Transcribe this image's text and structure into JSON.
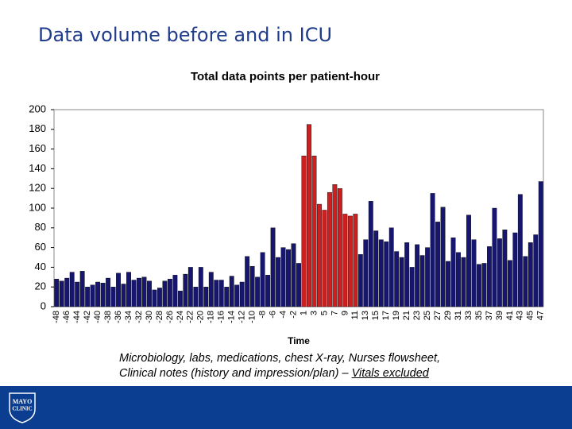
{
  "slide": {
    "title": "Data volume before and in ICU",
    "caption_line1": "Microbiology, labs, medications, chest X-ray, Nurses flowsheet,",
    "caption_line2": "Clinical notes (history and impression/plan) – ",
    "caption_underlined": "Vitals excluded",
    "logo_top": "MAYO",
    "logo_bottom": "CLINIC"
  },
  "chart_data": {
    "type": "bar",
    "title": "Total data points per patient-hour",
    "x_label": "Time",
    "categories": [
      "-48",
      null,
      "-46",
      null,
      "-44",
      null,
      "-42",
      null,
      "-40",
      null,
      "-38",
      null,
      "-36",
      null,
      "-34",
      null,
      "-32",
      null,
      "-30",
      null,
      "-28",
      null,
      "-26",
      null,
      "-24",
      null,
      "-22",
      null,
      "-20",
      null,
      "-18",
      null,
      "-16",
      null,
      "-14",
      null,
      "-12",
      null,
      "-10",
      null,
      "-8",
      null,
      "-6",
      null,
      "-4",
      null,
      "-2",
      null,
      "1",
      null,
      "3",
      null,
      "5",
      null,
      "7",
      null,
      "9",
      null,
      "11",
      null,
      "13",
      null,
      "15",
      null,
      "17",
      null,
      "19",
      null,
      "21",
      null,
      "23",
      null,
      "25",
      null,
      "27",
      null,
      "29",
      null,
      "31",
      null,
      "33",
      null,
      "35",
      null,
      "37",
      null,
      "39",
      null,
      "41",
      null,
      "43",
      null,
      "45",
      null,
      "47"
    ],
    "values": [
      28,
      26,
      29,
      35,
      25,
      36,
      20,
      22,
      25,
      24,
      29,
      20,
      34,
      23,
      35,
      27,
      29,
      30,
      26,
      17,
      19,
      26,
      28,
      32,
      16,
      33,
      40,
      20,
      40,
      20,
      35,
      27,
      27,
      20,
      31,
      22,
      25,
      51,
      41,
      30,
      55,
      32,
      80,
      50,
      60,
      58,
      64,
      44,
      153,
      185,
      153,
      104,
      98,
      116,
      124,
      120,
      94,
      92,
      94,
      53,
      68,
      107,
      77,
      68,
      66,
      80,
      56,
      50,
      65,
      40,
      63,
      52,
      60,
      115,
      86,
      101,
      46,
      70,
      55,
      50,
      93,
      68,
      43,
      44,
      61,
      100,
      69,
      78,
      47,
      75,
      114,
      51,
      65,
      73,
      127
    ],
    "colors": [
      "#16166e",
      "#16166e",
      "#16166e",
      "#16166e",
      "#16166e",
      "#16166e",
      "#16166e",
      "#16166e",
      "#16166e",
      "#16166e",
      "#16166e",
      "#16166e",
      "#16166e",
      "#16166e",
      "#16166e",
      "#16166e",
      "#16166e",
      "#16166e",
      "#16166e",
      "#16166e",
      "#16166e",
      "#16166e",
      "#16166e",
      "#16166e",
      "#16166e",
      "#16166e",
      "#16166e",
      "#16166e",
      "#16166e",
      "#16166e",
      "#16166e",
      "#16166e",
      "#16166e",
      "#16166e",
      "#16166e",
      "#16166e",
      "#16166e",
      "#16166e",
      "#16166e",
      "#16166e",
      "#16166e",
      "#16166e",
      "#16166e",
      "#16166e",
      "#16166e",
      "#16166e",
      "#16166e",
      "#16166e",
      "#cc2020",
      "#cc2020",
      "#cc2020",
      "#cc2020",
      "#cc2020",
      "#cc2020",
      "#cc2020",
      "#cc2020",
      "#cc2020",
      "#cc2020",
      "#cc2020",
      "#16166e",
      "#16166e",
      "#16166e",
      "#16166e",
      "#16166e",
      "#16166e",
      "#16166e",
      "#16166e",
      "#16166e",
      "#16166e",
      "#16166e",
      "#16166e",
      "#16166e",
      "#16166e",
      "#16166e",
      "#16166e",
      "#16166e",
      "#16166e",
      "#16166e",
      "#16166e",
      "#16166e",
      "#16166e",
      "#16166e",
      "#16166e",
      "#16166e",
      "#16166e",
      "#16166e",
      "#16166e",
      "#16166e",
      "#16166e",
      "#16166e",
      "#16166e",
      "#16166e",
      "#16166e",
      "#16166e",
      "#16166e"
    ],
    "ylim": [
      0,
      200
    ],
    "yticks": [
      0,
      20,
      40,
      60,
      80,
      100,
      120,
      140,
      160,
      180,
      200
    ],
    "grid": false
  }
}
